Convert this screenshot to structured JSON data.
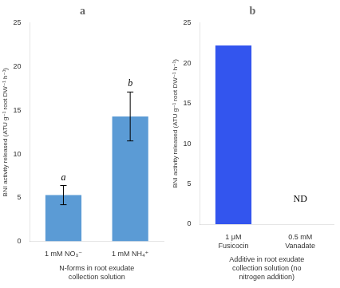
{
  "chart_data": [
    {
      "type": "bar",
      "title": "a",
      "categories": [
        "1 mM NO₃⁻",
        "1 mM NH₄⁺"
      ],
      "values": [
        5.3,
        14.3
      ],
      "errors": [
        1.1,
        2.8
      ],
      "color": "#5b9bd5",
      "ylim": [
        0,
        25
      ],
      "yticks": [
        0,
        5,
        10,
        15,
        20,
        25
      ],
      "ylabel": "BNI activity released (ATU g⁻¹ root DW⁻¹ h⁻¹)",
      "xlabel": "N-forms in root exudate\ncollection solution",
      "annotations": [
        {
          "text": "a",
          "x": "1 mM NO₃⁻"
        },
        {
          "text": "b",
          "x": "1 mM NH₄⁺"
        }
      ],
      "grid": false
    },
    {
      "type": "bar",
      "title": "b",
      "categories": [
        "1 μM\nFusicocin",
        "0.5 mM\nVanadate"
      ],
      "values": [
        22.2,
        0
      ],
      "color": "#3355ee",
      "ylim": [
        0,
        25
      ],
      "yticks": [
        0,
        5,
        10,
        15,
        20,
        25
      ],
      "ylabel": "BNI activity released (ATU g⁻¹ root DW⁻¹ h⁻¹)",
      "xlabel": "Additive in root exudate\ncollection solution (no\nnitrogen addition)",
      "annotations": [
        {
          "text": "ND",
          "x": "0.5 mM\nVanadate",
          "y": 2.5
        }
      ],
      "grid": false
    }
  ]
}
